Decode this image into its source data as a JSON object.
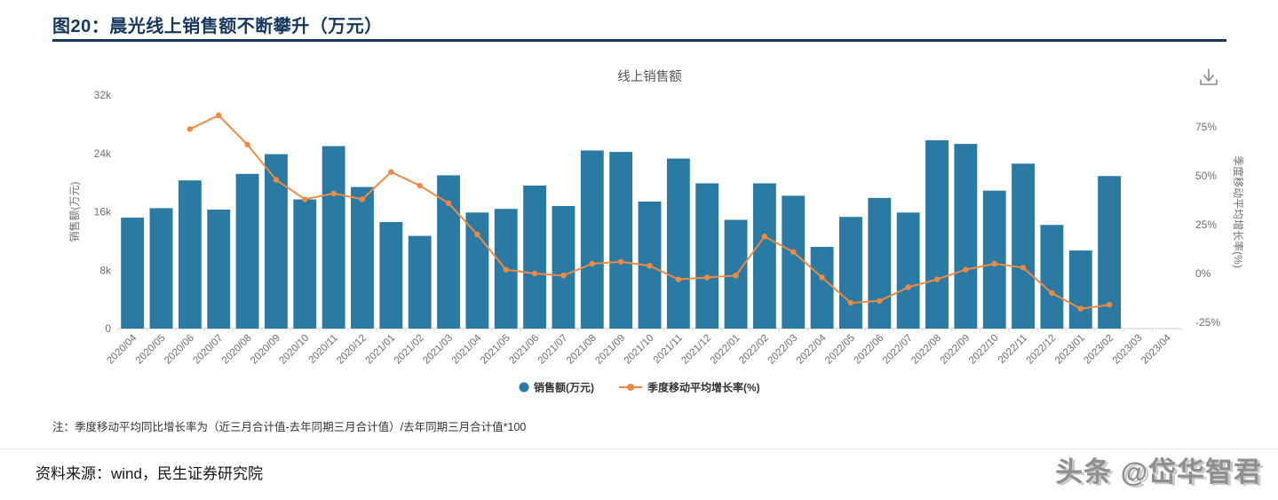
{
  "page": {
    "figure_title": "图20：晨光线上销售额不断攀升（万元）",
    "note": "注：季度移动平均同比增长率为（近三月合计值-去年同期三月合计值）/去年同期三月合计值*100",
    "source": "资料来源：wind，民生证券研究院",
    "watermark": "头条 @岱华智君"
  },
  "icons": {
    "download": "download-icon"
  },
  "chart_data": {
    "type": "bar",
    "subtype": "combo-bar-line",
    "title": "线上销售额",
    "legend_position": "bottom",
    "grid": false,
    "categories": [
      "2020/04",
      "2020/05",
      "2020/06",
      "2020/07",
      "2020/08",
      "2020/09",
      "2020/10",
      "2020/11",
      "2020/12",
      "2021/01",
      "2021/02",
      "2021/03",
      "2021/04",
      "2021/05",
      "2021/06",
      "2021/07",
      "2021/08",
      "2021/09",
      "2021/10",
      "2021/11",
      "2021/12",
      "2022/01",
      "2022/02",
      "2022/03",
      "2022/04",
      "2022/05",
      "2022/06",
      "2022/07",
      "2022/08",
      "2022/09",
      "2022/10",
      "2022/11",
      "2022/12",
      "2023/01",
      "2023/02",
      "2023/03",
      "2023/04"
    ],
    "series": [
      {
        "name": "销售额(万元)",
        "type": "bar",
        "axis": "left",
        "color": "#2a7aa4",
        "values": [
          15200,
          16500,
          20300,
          16300,
          21200,
          23900,
          17700,
          25000,
          19400,
          14600,
          12700,
          21000,
          15900,
          16400,
          19600,
          16800,
          24400,
          24200,
          17400,
          23300,
          19900,
          14900,
          19900,
          18200,
          11200,
          15300,
          17900,
          15900,
          25800,
          25300,
          18900,
          22600,
          14200,
          10700,
          20900,
          null,
          null
        ]
      },
      {
        "name": "季度移动平均增长率(%)",
        "type": "line",
        "axis": "right",
        "color": "#ef8a43",
        "values": [
          null,
          null,
          74,
          81,
          66,
          48,
          38,
          41,
          38,
          52,
          45,
          36,
          20,
          2,
          0,
          -1,
          5,
          6,
          4,
          -3,
          -2,
          -1,
          19,
          11,
          -2,
          -15,
          -14,
          -7,
          -3,
          2,
          5,
          3,
          -10,
          -18,
          -16,
          null,
          null
        ]
      }
    ],
    "left_axis": {
      "title": "销售额(万元)",
      "min": 0,
      "max": 32000,
      "ticks": [
        {
          "value": 0,
          "label": "0"
        },
        {
          "value": 8000,
          "label": "8k"
        },
        {
          "value": 16000,
          "label": "16k"
        },
        {
          "value": 24000,
          "label": "24k"
        },
        {
          "value": 32000,
          "label": "32k"
        }
      ]
    },
    "right_axis": {
      "title": "季度移动平均增长率(%)",
      "min": -28.2,
      "max": 91.4,
      "ticks": [
        {
          "value": -25,
          "label": "-25%"
        },
        {
          "value": 0,
          "label": "0%"
        },
        {
          "value": 25,
          "label": "25%"
        },
        {
          "value": 50,
          "label": "50%"
        },
        {
          "value": 75,
          "label": "75%"
        }
      ]
    }
  }
}
